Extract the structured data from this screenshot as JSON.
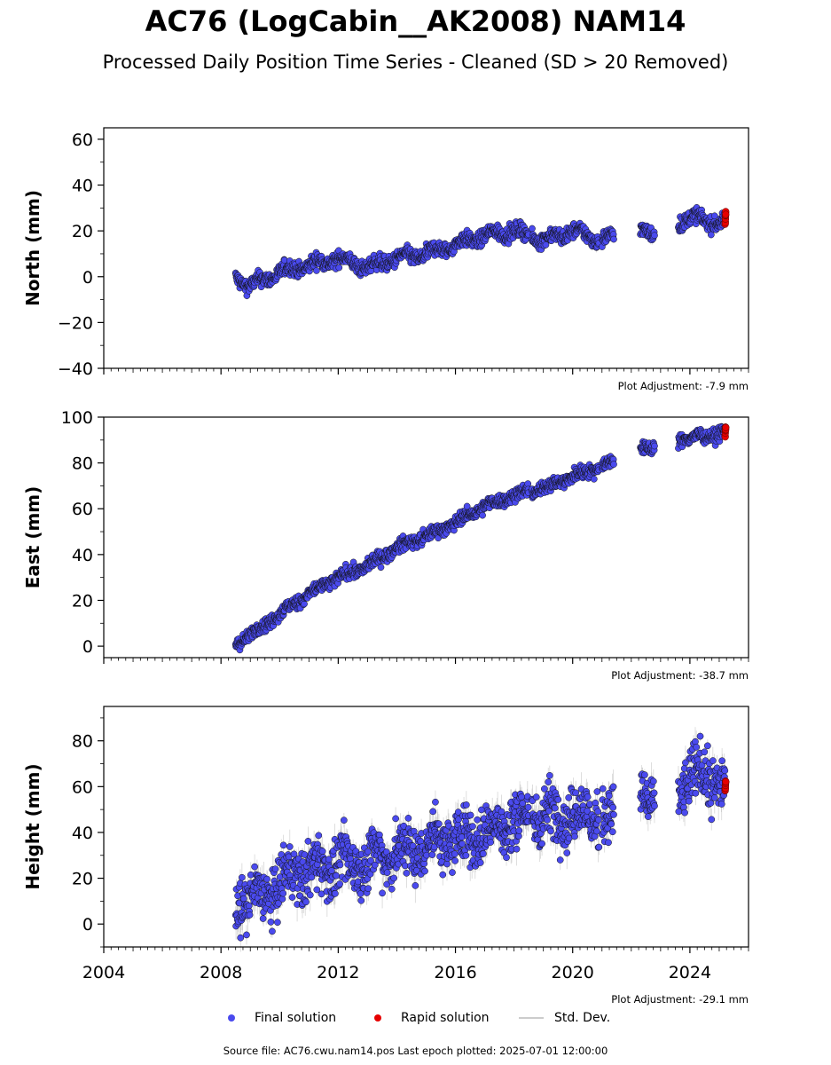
{
  "title": "AC76 (LogCabin__AK2008) NAM14",
  "subtitle": "Processed Daily Position Time Series - Cleaned (SD > 20 Removed)",
  "footer": "Source file: AC76.cwu.nam14.pos  Last epoch plotted: 2025-07-01 12:00:00",
  "legend": {
    "final_label": "Final solution",
    "rapid_label": "Rapid solution",
    "std_label": "Std. Dev."
  },
  "colors": {
    "final": "#4a4aee",
    "rapid": "#e60000",
    "std_dev": "#bbbbbb",
    "marker_edge": "#111111"
  },
  "chart_data": [
    {
      "type": "scatter",
      "name": "north",
      "ylabel": "North (mm)",
      "ylim": [
        -40,
        65
      ],
      "yticks": [
        -40,
        -20,
        0,
        20,
        40,
        60
      ],
      "xlim": [
        2004,
        2026
      ],
      "adjustment": "Plot Adjustment: -7.9 mm",
      "final_trend": [
        [
          2008.5,
          0
        ],
        [
          2009.0,
          -4
        ],
        [
          2010.0,
          2
        ],
        [
          2011.0,
          5
        ],
        [
          2012.0,
          8
        ],
        [
          2013.0,
          4
        ],
        [
          2014.0,
          8
        ],
        [
          2015.0,
          10
        ],
        [
          2016.0,
          14
        ],
        [
          2017.0,
          18
        ],
        [
          2018.0,
          20
        ],
        [
          2019.0,
          16
        ],
        [
          2020.0,
          20
        ],
        [
          2021.0,
          16
        ],
        [
          2022.0,
          20
        ],
        [
          2023.0,
          20
        ],
        [
          2024.0,
          26
        ],
        [
          2025.2,
          23
        ]
      ],
      "rapid_trend": [
        [
          2025.25,
          23
        ],
        [
          2025.5,
          28
        ]
      ]
    },
    {
      "type": "scatter",
      "name": "east",
      "ylabel": "East (mm)",
      "ylim": [
        -5,
        100
      ],
      "yticks": [
        0,
        20,
        40,
        60,
        80,
        100
      ],
      "xlim": [
        2004,
        2026
      ],
      "adjustment": "Plot Adjustment: -38.7 mm",
      "final_trend": [
        [
          2008.5,
          1
        ],
        [
          2009.0,
          5
        ],
        [
          2010.0,
          14
        ],
        [
          2011.0,
          23
        ],
        [
          2012.0,
          30
        ],
        [
          2013.0,
          35
        ],
        [
          2014.0,
          43
        ],
        [
          2015.0,
          48
        ],
        [
          2016.0,
          54
        ],
        [
          2017.0,
          61
        ],
        [
          2018.0,
          66
        ],
        [
          2019.0,
          69
        ],
        [
          2020.0,
          74
        ],
        [
          2021.0,
          79
        ],
        [
          2022.0,
          84
        ],
        [
          2023.0,
          89
        ],
        [
          2024.0,
          91
        ],
        [
          2025.2,
          93
        ]
      ],
      "rapid_trend": [
        [
          2025.25,
          92
        ],
        [
          2025.5,
          96
        ]
      ]
    },
    {
      "type": "scatter",
      "name": "height",
      "ylabel": "Height (mm)",
      "ylim": [
        -10,
        95
      ],
      "yticks": [
        0,
        20,
        40,
        60,
        80
      ],
      "xlim": [
        2004,
        2026
      ],
      "xticks": [
        2004,
        2008,
        2012,
        2016,
        2020,
        2024
      ],
      "adjustment": "Plot Adjustment: -29.1 mm",
      "final_trend": [
        [
          2008.5,
          10
        ],
        [
          2009.5,
          12
        ],
        [
          2010.5,
          22
        ],
        [
          2011.5,
          25
        ],
        [
          2012.5,
          26
        ],
        [
          2013.5,
          30
        ],
        [
          2014.5,
          32
        ],
        [
          2015.5,
          37
        ],
        [
          2016.5,
          38
        ],
        [
          2017.5,
          42
        ],
        [
          2018.5,
          47
        ],
        [
          2019.5,
          48
        ],
        [
          2020.5,
          48
        ],
        [
          2021.5,
          45
        ],
        [
          2022.5,
          55
        ],
        [
          2023.5,
          60
        ],
        [
          2024.5,
          66
        ],
        [
          2025.2,
          60
        ]
      ],
      "rapid_trend": [
        [
          2025.25,
          58
        ],
        [
          2025.5,
          63
        ]
      ]
    }
  ]
}
